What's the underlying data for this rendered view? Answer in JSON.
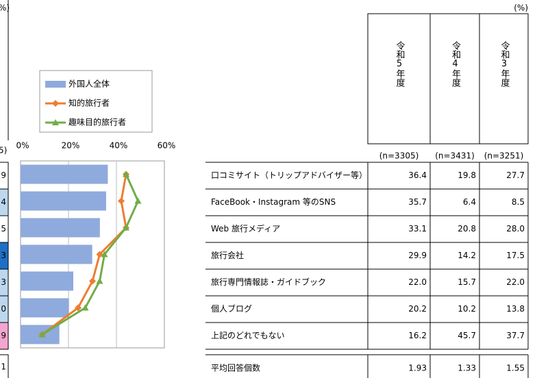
{
  "left_fragment": {
    "unit": "%)",
    "n_label": "5)",
    "cells": [
      {
        "text": "9",
        "color": "#ffffff",
        "ink": "#000000"
      },
      {
        "text": "4",
        "color": "#bdd7ee",
        "ink": "#000000"
      },
      {
        "text": "5",
        "color": "#ffffff",
        "ink": "#000000"
      },
      {
        "text": "3",
        "color": "#1f6fc5",
        "ink": "#ffffff"
      },
      {
        "text": "3",
        "color": "#bdd7ee",
        "ink": "#000000"
      },
      {
        "text": "0",
        "color": "#bdd7ee",
        "ink": "#000000"
      },
      {
        "text": "9",
        "color": "#f4a6d0",
        "ink": "#000000"
      }
    ],
    "average": "1"
  },
  "chart_data": {
    "type": "bar",
    "series": [
      {
        "name": "外国人全体",
        "type": "bar",
        "color": "#8faadc",
        "values": [
          36.4,
          35.7,
          33.1,
          29.9,
          22.0,
          20.2,
          16.2
        ]
      },
      {
        "name": "知的旅行者",
        "type": "line",
        "marker": "diamond",
        "color": "#ed7d31",
        "values": [
          44,
          42,
          44,
          33,
          30,
          24,
          9
        ]
      },
      {
        "name": "趣味目的旅行者",
        "type": "line",
        "marker": "triangle",
        "color": "#70ad47",
        "values": [
          44,
          49,
          44,
          35,
          33,
          27,
          9
        ]
      }
    ],
    "xlim": [
      0,
      60
    ],
    "xticks": [
      {
        "value": 0,
        "label": "0%"
      },
      {
        "value": 20,
        "label": "20%"
      },
      {
        "value": 40,
        "label": "40%"
      },
      {
        "value": 60,
        "label": "60%"
      }
    ],
    "grid": true
  },
  "table": {
    "unit": "(%)",
    "columns": [
      "令和5年度",
      "令和4年度",
      "令和3年度"
    ],
    "n_labels": [
      "(n=3305)",
      "(n=3431)",
      "(n=3251)"
    ],
    "rows": [
      [
        "口コミサイト（トリップアドバイザー等）",
        "36.4",
        "19.8",
        "27.7"
      ],
      [
        "FaceBook・Instagram 等のSNS",
        "35.7",
        "6.4",
        "8.5"
      ],
      [
        "Web 旅行メディア",
        "33.1",
        "20.8",
        "28.0"
      ],
      [
        "旅行会社",
        "29.9",
        "14.2",
        "17.5"
      ],
      [
        "旅行専門情報誌・ガイドブック",
        "22.0",
        "15.7",
        "22.0"
      ],
      [
        "個人ブログ",
        "20.2",
        "10.2",
        "13.8"
      ],
      [
        "上記のどれでもない",
        "16.2",
        "45.7",
        "37.7"
      ]
    ],
    "average_row": [
      "平均回答個数",
      "1.93",
      "1.33",
      "1.55"
    ]
  }
}
